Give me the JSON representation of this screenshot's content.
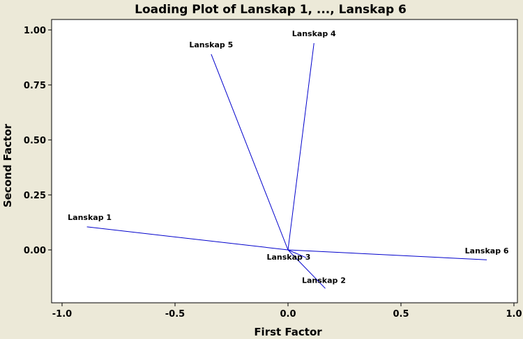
{
  "chart_data": {
    "type": "line",
    "title": "Loading Plot of Lanskap 1, ..., Lanskap 6",
    "xlabel": "First Factor",
    "ylabel": "Second Factor",
    "xlim": [
      -1.0,
      1.0
    ],
    "ylim": [
      -0.25,
      1.05
    ],
    "xticks": [
      -1.0,
      -0.5,
      0.0,
      0.5,
      1.0
    ],
    "xtick_labels": [
      "-1.0",
      "-0.5",
      "0.0",
      "0.5",
      "1.0"
    ],
    "yticks": [
      0.0,
      0.25,
      0.5,
      0.75,
      1.0
    ],
    "ytick_labels": [
      "0.00",
      "0.25",
      "0.50",
      "0.75",
      "1.00"
    ],
    "grid": false,
    "line_color": "#0000cc",
    "origin": [
      0,
      0
    ],
    "series": [
      {
        "name": "Lanskap 1",
        "x": -0.89,
        "y": 0.105,
        "label_anchor": "middle"
      },
      {
        "name": "Lanskap 2",
        "x": 0.165,
        "y": -0.175,
        "label_anchor": "middle"
      },
      {
        "name": "Lanskap 3",
        "x": 0.08,
        "y": -0.035,
        "label_anchor": "middle"
      },
      {
        "name": "Lanskap 4",
        "x": 0.115,
        "y": 0.94,
        "label_anchor": "middle"
      },
      {
        "name": "Lanskap 5",
        "x": -0.34,
        "y": 0.89,
        "label_anchor": "middle"
      },
      {
        "name": "Lanskap 6",
        "x": 0.88,
        "y": -0.045,
        "label_anchor": "middle"
      }
    ]
  }
}
